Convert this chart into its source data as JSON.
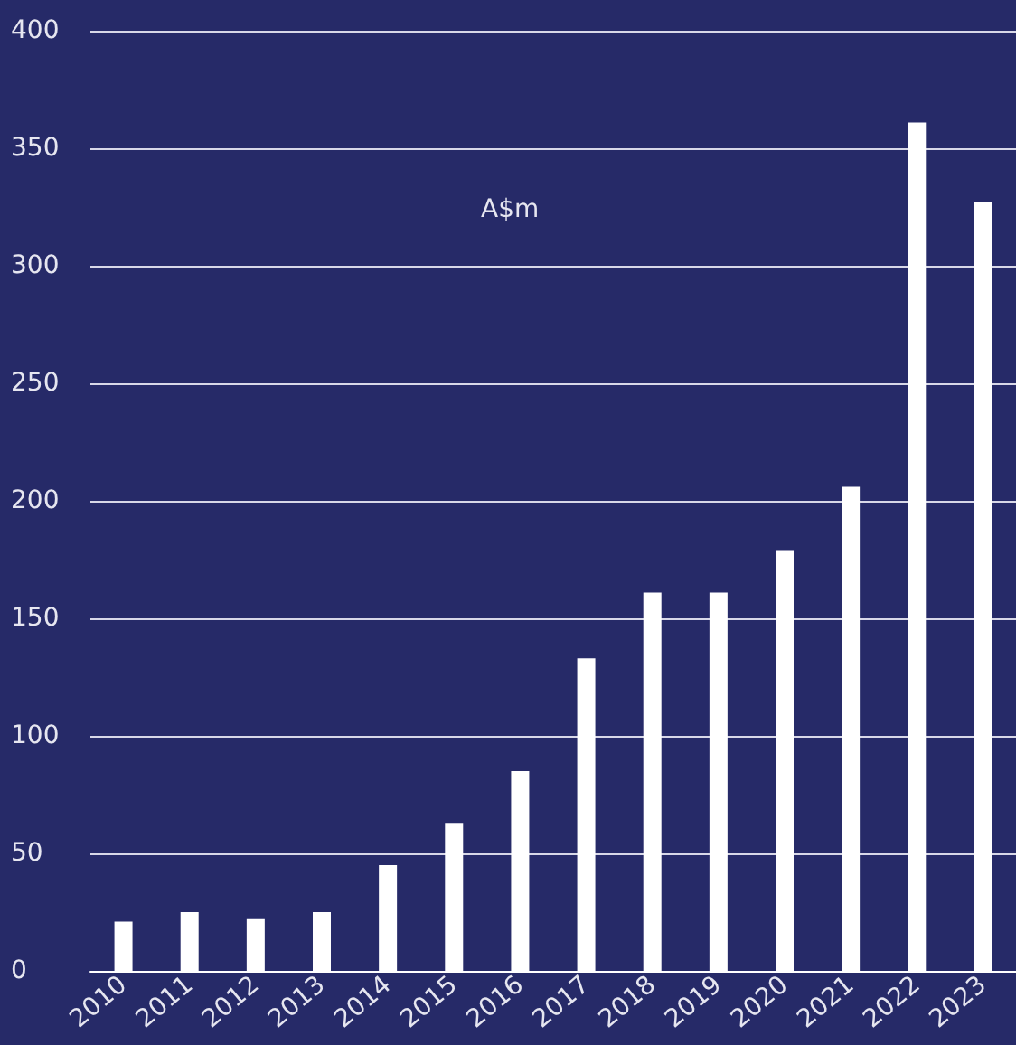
{
  "chart_data": {
    "type": "bar",
    "ylabel": "A$m",
    "categories": [
      "2010",
      "2011",
      "2012",
      "2013",
      "2014",
      "2015",
      "2016",
      "2017",
      "2018",
      "2019",
      "2020",
      "2021",
      "2022",
      "2023"
    ],
    "values": [
      21,
      25,
      22,
      25,
      45,
      63,
      85,
      133,
      161,
      161,
      179,
      206,
      361,
      327
    ],
    "color": "#ffffff",
    "ylim": [
      0,
      400
    ],
    "yticks": [
      0,
      50,
      100,
      150,
      200,
      250,
      300,
      350,
      400
    ],
    "grid": "y"
  }
}
